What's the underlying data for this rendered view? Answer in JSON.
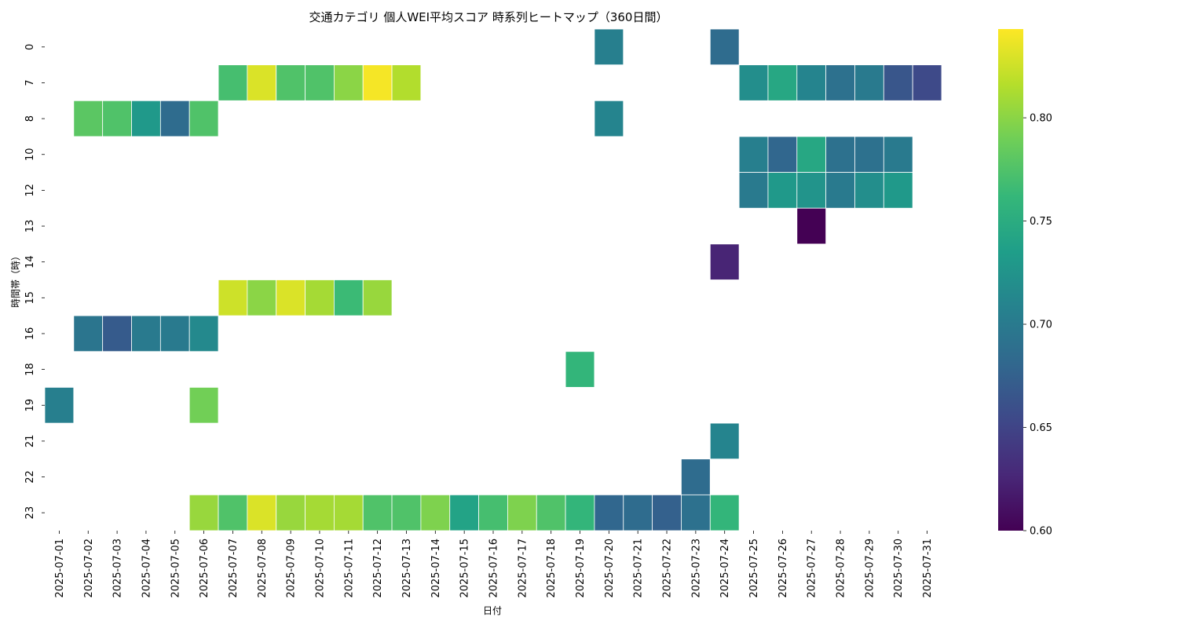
{
  "chart_data": {
    "type": "heatmap",
    "title": "交通カテゴリ 個人WEI平均スコア 時系列ヒートマップ（360日間）",
    "xlabel": "日付",
    "ylabel": "時間帯（時）",
    "x": [
      "2025-07-01",
      "2025-07-02",
      "2025-07-03",
      "2025-07-04",
      "2025-07-05",
      "2025-07-06",
      "2025-07-07",
      "2025-07-08",
      "2025-07-09",
      "2025-07-10",
      "2025-07-11",
      "2025-07-12",
      "2025-07-13",
      "2025-07-14",
      "2025-07-15",
      "2025-07-16",
      "2025-07-17",
      "2025-07-18",
      "2025-07-19",
      "2025-07-20",
      "2025-07-21",
      "2025-07-22",
      "2025-07-23",
      "2025-07-24",
      "2025-07-25",
      "2025-07-26",
      "2025-07-27",
      "2025-07-28",
      "2025-07-29",
      "2025-07-30",
      "2025-07-31"
    ],
    "y": [
      "0",
      "7",
      "8",
      "10",
      "12",
      "13",
      "14",
      "15",
      "16",
      "18",
      "19",
      "21",
      "22",
      "23"
    ],
    "colormap": "viridis",
    "colorbar": {
      "vmin": 0.6,
      "vmax": 0.843,
      "ticks": [
        "0.60",
        "0.65",
        "0.70",
        "0.75",
        "0.80"
      ]
    },
    "cells": [
      {
        "hour": "0",
        "date": "2025-07-20",
        "value": 0.705
      },
      {
        "hour": "0",
        "date": "2025-07-24",
        "value": 0.685
      },
      {
        "hour": "7",
        "date": "2025-07-07",
        "value": 0.77
      },
      {
        "hour": "7",
        "date": "2025-07-08",
        "value": 0.83
      },
      {
        "hour": "7",
        "date": "2025-07-09",
        "value": 0.775
      },
      {
        "hour": "7",
        "date": "2025-07-10",
        "value": 0.775
      },
      {
        "hour": "7",
        "date": "2025-07-11",
        "value": 0.8
      },
      {
        "hour": "7",
        "date": "2025-07-12",
        "value": 0.84
      },
      {
        "hour": "7",
        "date": "2025-07-13",
        "value": 0.815
      },
      {
        "hour": "7",
        "date": "2025-07-25",
        "value": 0.72
      },
      {
        "hour": "7",
        "date": "2025-07-26",
        "value": 0.745
      },
      {
        "hour": "7",
        "date": "2025-07-27",
        "value": 0.71
      },
      {
        "hour": "7",
        "date": "2025-07-28",
        "value": 0.69
      },
      {
        "hour": "7",
        "date": "2025-07-29",
        "value": 0.7
      },
      {
        "hour": "7",
        "date": "2025-07-30",
        "value": 0.665
      },
      {
        "hour": "7",
        "date": "2025-07-31",
        "value": 0.655
      },
      {
        "hour": "8",
        "date": "2025-07-02",
        "value": 0.78
      },
      {
        "hour": "8",
        "date": "2025-07-03",
        "value": 0.775
      },
      {
        "hour": "8",
        "date": "2025-07-04",
        "value": 0.73
      },
      {
        "hour": "8",
        "date": "2025-07-05",
        "value": 0.685
      },
      {
        "hour": "8",
        "date": "2025-07-06",
        "value": 0.775
      },
      {
        "hour": "8",
        "date": "2025-07-20",
        "value": 0.71
      },
      {
        "hour": "10",
        "date": "2025-07-25",
        "value": 0.705
      },
      {
        "hour": "10",
        "date": "2025-07-26",
        "value": 0.68
      },
      {
        "hour": "10",
        "date": "2025-07-27",
        "value": 0.745
      },
      {
        "hour": "10",
        "date": "2025-07-28",
        "value": 0.69
      },
      {
        "hour": "10",
        "date": "2025-07-29",
        "value": 0.69
      },
      {
        "hour": "10",
        "date": "2025-07-30",
        "value": 0.7
      },
      {
        "hour": "12",
        "date": "2025-07-25",
        "value": 0.7
      },
      {
        "hour": "12",
        "date": "2025-07-26",
        "value": 0.73
      },
      {
        "hour": "12",
        "date": "2025-07-27",
        "value": 0.725
      },
      {
        "hour": "12",
        "date": "2025-07-28",
        "value": 0.7
      },
      {
        "hour": "12",
        "date": "2025-07-29",
        "value": 0.72
      },
      {
        "hour": "12",
        "date": "2025-07-30",
        "value": 0.73
      },
      {
        "hour": "13",
        "date": "2025-07-27",
        "value": 0.6
      },
      {
        "hour": "14",
        "date": "2025-07-24",
        "value": 0.625
      },
      {
        "hour": "15",
        "date": "2025-07-07",
        "value": 0.825
      },
      {
        "hour": "15",
        "date": "2025-07-08",
        "value": 0.8
      },
      {
        "hour": "15",
        "date": "2025-07-09",
        "value": 0.83
      },
      {
        "hour": "15",
        "date": "2025-07-10",
        "value": 0.81
      },
      {
        "hour": "15",
        "date": "2025-07-11",
        "value": 0.765
      },
      {
        "hour": "15",
        "date": "2025-07-12",
        "value": 0.805
      },
      {
        "hour": "16",
        "date": "2025-07-02",
        "value": 0.695
      },
      {
        "hour": "16",
        "date": "2025-07-03",
        "value": 0.67
      },
      {
        "hour": "16",
        "date": "2025-07-04",
        "value": 0.7
      },
      {
        "hour": "16",
        "date": "2025-07-05",
        "value": 0.7
      },
      {
        "hour": "16",
        "date": "2025-07-06",
        "value": 0.715
      },
      {
        "hour": "18",
        "date": "2025-07-19",
        "value": 0.76
      },
      {
        "hour": "19",
        "date": "2025-07-01",
        "value": 0.705
      },
      {
        "hour": "19",
        "date": "2025-07-06",
        "value": 0.79
      },
      {
        "hour": "21",
        "date": "2025-07-24",
        "value": 0.71
      },
      {
        "hour": "22",
        "date": "2025-07-23",
        "value": 0.685
      },
      {
        "hour": "23",
        "date": "2025-07-06",
        "value": 0.805
      },
      {
        "hour": "23",
        "date": "2025-07-07",
        "value": 0.775
      },
      {
        "hour": "23",
        "date": "2025-07-08",
        "value": 0.83
      },
      {
        "hour": "23",
        "date": "2025-07-09",
        "value": 0.805
      },
      {
        "hour": "23",
        "date": "2025-07-10",
        "value": 0.81
      },
      {
        "hour": "23",
        "date": "2025-07-11",
        "value": 0.81
      },
      {
        "hour": "23",
        "date": "2025-07-12",
        "value": 0.775
      },
      {
        "hour": "23",
        "date": "2025-07-13",
        "value": 0.775
      },
      {
        "hour": "23",
        "date": "2025-07-14",
        "value": 0.795
      },
      {
        "hour": "23",
        "date": "2025-07-15",
        "value": 0.74
      },
      {
        "hour": "23",
        "date": "2025-07-16",
        "value": 0.77
      },
      {
        "hour": "23",
        "date": "2025-07-17",
        "value": 0.795
      },
      {
        "hour": "23",
        "date": "2025-07-18",
        "value": 0.775
      },
      {
        "hour": "23",
        "date": "2025-07-19",
        "value": 0.76
      },
      {
        "hour": "23",
        "date": "2025-07-20",
        "value": 0.68
      },
      {
        "hour": "23",
        "date": "2025-07-21",
        "value": 0.685
      },
      {
        "hour": "23",
        "date": "2025-07-22",
        "value": 0.675
      },
      {
        "hour": "23",
        "date": "2025-07-23",
        "value": 0.69
      },
      {
        "hour": "23",
        "date": "2025-07-24",
        "value": 0.76
      }
    ]
  }
}
